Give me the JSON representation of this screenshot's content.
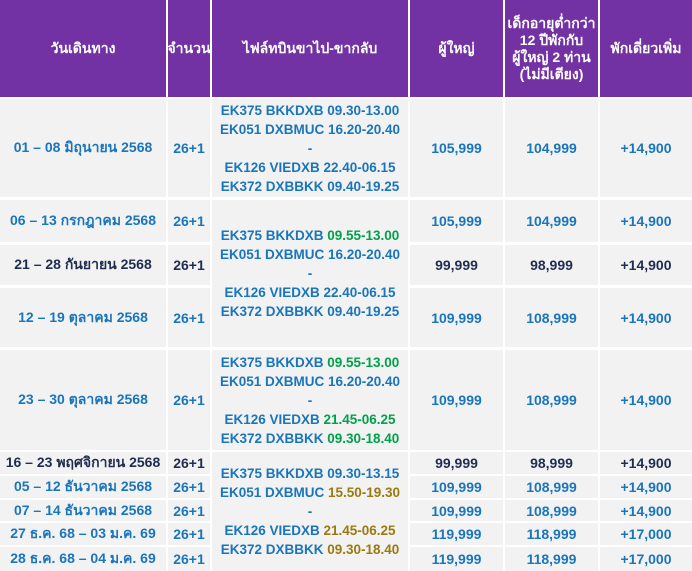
{
  "table": {
    "header": {
      "date": "วันเดินทาง",
      "pax": "จำนวน",
      "flight": "ไฟล์ทบินขาไป-ขากลับ",
      "adult": "ผู้ใหญ่",
      "child": [
        "เด็กอายุต่ำกว่า",
        "12 ปีพักกับ",
        "ผู้ใหญ่ 2 ท่าน",
        "(ไม่มีเตียง)"
      ],
      "single": "พักเดี่ยวเพิ่ม"
    },
    "rows": [
      {
        "date": "01 – 08 มิถุนายน 2568",
        "pax": "26+1",
        "adult": "105,999",
        "child": "104,999",
        "single": "+14,900",
        "emphasis": false,
        "flights": [
          {
            "route": "EK375 BKKDXB",
            "time": "09.30-13.00",
            "time_color": "#1a75bb"
          },
          {
            "route": "EK051 DXBMUC",
            "time": "16.20-20.40",
            "time_color": "#1a75bb"
          },
          {
            "route": "-"
          },
          {
            "route": "EK126 VIEDXB",
            "time": "22.40-06.15",
            "time_color": "#1a75bb"
          },
          {
            "route": "EK372 DXBBKK",
            "time": "09.40-19.25",
            "time_color": "#1a75bb"
          }
        ]
      },
      {
        "date": "06 – 13 กรกฎาคม 2568",
        "pax": "26+1",
        "adult": "105,999",
        "child": "104,999",
        "single": "+14,900",
        "emphasis": false,
        "flights": [
          {
            "route": "EK375 BKKDXB",
            "time": "09.55-13.00",
            "time_color": "#00a14b"
          },
          {
            "route": "EK051 DXBMUC",
            "time": "16.20-20.40",
            "time_color": "#1a75bb"
          },
          {
            "route": "-"
          },
          {
            "route": "EK126 VIEDXB",
            "time": "22.40-06.15",
            "time_color": "#1a75bb"
          },
          {
            "route": "EK372 DXBBKK",
            "time": "09.40-19.25",
            "time_color": "#1a75bb"
          }
        ]
      },
      {
        "date": "21 – 28 กันยายน 2568",
        "pax": "26+1",
        "adult": "99,999",
        "child": "98,999",
        "single": "+14,900",
        "emphasis": true
      },
      {
        "date": "12 – 19 ตุลาคม 2568",
        "pax": "26+1",
        "adult": "109,999",
        "child": "108,999",
        "single": "+14,900",
        "emphasis": false
      },
      {
        "date": "23 – 30 ตุลาคม 2568",
        "pax": "26+1",
        "adult": "109,999",
        "child": "108,999",
        "single": "+14,900",
        "emphasis": false,
        "flights": [
          {
            "route": "EK375 BKKDXB",
            "time": "09.55-13.00",
            "time_color": "#00a14b"
          },
          {
            "route": "EK051 DXBMUC",
            "time": "16.20-20.40",
            "time_color": "#1a75bb"
          },
          {
            "route": "-"
          },
          {
            "route": "EK126 VIEDXB",
            "time": "21.45-06.25",
            "time_color": "#00a14b"
          },
          {
            "route": "EK372 DXBBKK",
            "time": "09.30-18.40",
            "time_color": "#00a14b"
          }
        ]
      },
      {
        "date": "16 – 23 พฤศจิกายน 2568",
        "pax": "26+1",
        "adult": "99,999",
        "child": "98,999",
        "single": "+14,900",
        "emphasis": true,
        "flights": [
          {
            "route": "EK375 BKKDXB",
            "time": "09.30-13.15",
            "time_color": "#1a75bb"
          },
          {
            "route": "EK051 DXBMUC",
            "time": "15.50-19.30",
            "time_color": "#9a7a10"
          },
          {
            "route": "-"
          },
          {
            "route": "EK126 VIEDXB",
            "time": "21.45-06.25",
            "time_color": "#9a7a10"
          },
          {
            "route": "EK372 DXBBKK",
            "time": "09.30-18.40",
            "time_color": "#9a7a10"
          }
        ]
      },
      {
        "date": "05 – 12 ธันวาคม 2568",
        "pax": "26+1",
        "adult": "109,999",
        "child": "108,999",
        "single": "+14,900",
        "emphasis": false
      },
      {
        "date": "07 – 14 ธันวาคม 2568",
        "pax": "26+1",
        "adult": "109,999",
        "child": "108,999",
        "single": "+14,900",
        "emphasis": false
      },
      {
        "date": "27 ธ.ค. 68 – 03 ม.ค. 69",
        "pax": "26+1",
        "adult": "119,999",
        "child": "118,999",
        "single": "+17,000",
        "emphasis": false
      },
      {
        "date": "28 ธ.ค. 68 – 04 ม.ค. 69",
        "pax": "26+1",
        "adult": "119,999",
        "child": "118,999",
        "single": "+17,000",
        "emphasis": false
      }
    ]
  }
}
